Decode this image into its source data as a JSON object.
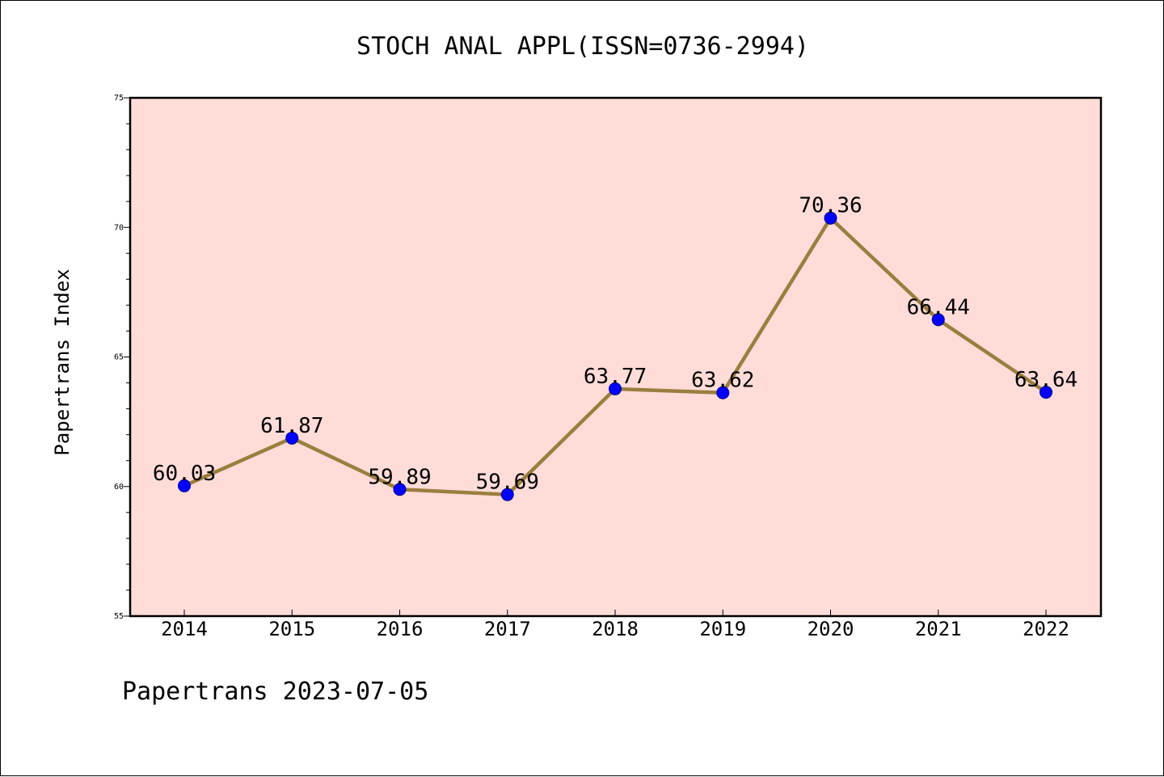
{
  "chart_data": {
    "type": "line",
    "title": "STOCH ANAL APPL(ISSN=0736-2994)",
    "xlabel": "",
    "ylabel": "Papertrans Index",
    "categories": [
      "2014",
      "2015",
      "2016",
      "2017",
      "2018",
      "2019",
      "2020",
      "2021",
      "2022"
    ],
    "series": [
      {
        "values": [
          60.03,
          61.87,
          59.89,
          59.69,
          63.77,
          63.62,
          70.36,
          66.44,
          63.64
        ],
        "labels": [
          "60.03",
          "61.87",
          "59.89",
          "59.69",
          "63.77",
          "63.62",
          "70.36",
          "66.44",
          "63.64"
        ]
      }
    ],
    "ylim": [
      55,
      75
    ],
    "yticks": [
      "55",
      "60",
      "65",
      "70",
      "75"
    ],
    "ytick_values": [
      55,
      60,
      65,
      70,
      75
    ],
    "grid": false,
    "legend": "none",
    "plot_background": "#FFDCD8",
    "line_color": "#9A7E3E",
    "marker_color": "#0000FF"
  },
  "footer": "Papertrans 2023-07-05"
}
